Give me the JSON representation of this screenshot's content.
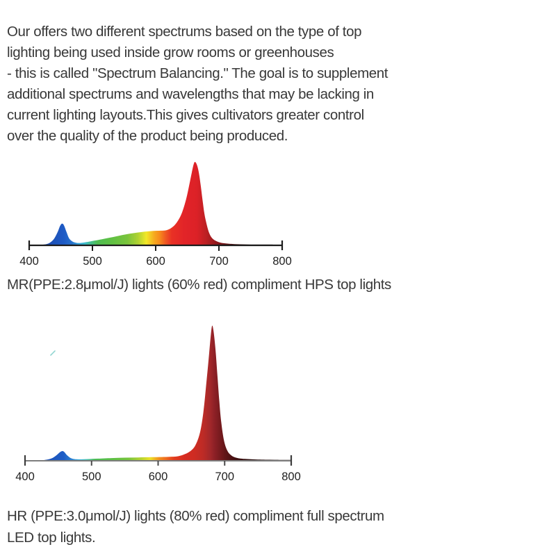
{
  "intro": {
    "lines": [
      "Our offers two different spectrums based on the type of top",
      "lighting being used inside grow rooms or greenhouses",
      "- this is called \"Spectrum Balancing.\" The goal is to supplement",
      "additional spectrums and wavelengths that may be lacking in",
      "current lighting layouts.This gives cultivators greater control",
      "over the quality of the product being produced."
    ]
  },
  "chart_data": [
    {
      "type": "area",
      "id": "MR",
      "title": "",
      "caption": "MR(PPE:2.8μmol/J) lights (60% red) compliment HPS top lights",
      "xlabel": "",
      "ylabel": "",
      "x_unit": "wavelength_nm",
      "xlim": [
        400,
        800
      ],
      "ylim": [
        0,
        1
      ],
      "x_ticks": [
        400,
        500,
        600,
        700,
        800
      ],
      "grid": false,
      "legend": null,
      "peaks": [
        {
          "wavelength_nm": 452,
          "relative_intensity": 0.26,
          "band": "blue"
        },
        {
          "wavelength_nm": 585,
          "relative_intensity": 0.18,
          "band": "broad green-yellow-orange hump"
        },
        {
          "wavelength_nm": 662,
          "relative_intensity": 1.0,
          "band": "red"
        }
      ],
      "profile_units": {
        "x": "wavelength_nm",
        "y": "relative_intensity_0_to_1"
      },
      "profile": [
        [
          400,
          0
        ],
        [
          414,
          0.003
        ],
        [
          424,
          0.01
        ],
        [
          432,
          0.028
        ],
        [
          439,
          0.075
        ],
        [
          445,
          0.16
        ],
        [
          449,
          0.235
        ],
        [
          452,
          0.26
        ],
        [
          455,
          0.24
        ],
        [
          459,
          0.16
        ],
        [
          463,
          0.085
        ],
        [
          468,
          0.048
        ],
        [
          474,
          0.032
        ],
        [
          481,
          0.028
        ],
        [
          490,
          0.038
        ],
        [
          500,
          0.052
        ],
        [
          512,
          0.068
        ],
        [
          525,
          0.088
        ],
        [
          540,
          0.112
        ],
        [
          555,
          0.134
        ],
        [
          570,
          0.152
        ],
        [
          583,
          0.165
        ],
        [
          596,
          0.173
        ],
        [
          608,
          0.176
        ],
        [
          617,
          0.182
        ],
        [
          625,
          0.21
        ],
        [
          633,
          0.27
        ],
        [
          641,
          0.38
        ],
        [
          648,
          0.55
        ],
        [
          653,
          0.72
        ],
        [
          657,
          0.87
        ],
        [
          660,
          0.97
        ],
        [
          662,
          1.0
        ],
        [
          665,
          0.97
        ],
        [
          668,
          0.88
        ],
        [
          671,
          0.73
        ],
        [
          674,
          0.55
        ],
        [
          677,
          0.38
        ],
        [
          681,
          0.24
        ],
        [
          685,
          0.14
        ],
        [
          690,
          0.08
        ],
        [
          696,
          0.05
        ],
        [
          703,
          0.032
        ],
        [
          712,
          0.022
        ],
        [
          725,
          0.015
        ],
        [
          745,
          0.011
        ],
        [
          770,
          0.009
        ],
        [
          800,
          0.008
        ]
      ],
      "gradient_stops": [
        [
          403,
          "#1C3F9E"
        ],
        [
          438,
          "#1D52B8"
        ],
        [
          455,
          "#1E5BC6"
        ],
        [
          468,
          "#2873CC"
        ],
        [
          478,
          "#33A3DA"
        ],
        [
          488,
          "#3EBDCC"
        ],
        [
          498,
          "#47BE8A"
        ],
        [
          508,
          "#4FBD52"
        ],
        [
          530,
          "#5FC043"
        ],
        [
          555,
          "#7AC43C"
        ],
        [
          572,
          "#AFD232"
        ],
        [
          585,
          "#F2E828"
        ],
        [
          598,
          "#F6A81F"
        ],
        [
          606,
          "#F68D1C"
        ],
        [
          615,
          "#F05A22"
        ],
        [
          625,
          "#E93125"
        ],
        [
          645,
          "#E22428"
        ],
        [
          665,
          "#DC2127"
        ],
        [
          680,
          "#BB2023"
        ],
        [
          695,
          "#93181C"
        ],
        [
          710,
          "#6B1315"
        ],
        [
          735,
          "#3A0E0E"
        ],
        [
          770,
          "#200808"
        ],
        [
          800,
          "#150505"
        ]
      ]
    },
    {
      "type": "area",
      "id": "HR",
      "title": "",
      "caption": "HR (PPE:3.0μmol/J) lights (80% red) compliment full spectrum LED top lights.",
      "caption_lines": [
        "HR (PPE:3.0μmol/J) lights (80% red) compliment full spectrum",
        "LED top lights."
      ],
      "xlabel": "",
      "ylabel": "",
      "x_unit": "wavelength_nm",
      "xlim": [
        400,
        800
      ],
      "ylim": [
        0,
        1
      ],
      "x_ticks": [
        400,
        500,
        600,
        700,
        800
      ],
      "grid": false,
      "legend": null,
      "peaks": [
        {
          "wavelength_nm": 456,
          "relative_intensity": 0.072,
          "band": "blue"
        },
        {
          "wavelength_nm": 600,
          "relative_intensity": 0.028,
          "band": "low green-yellow band"
        },
        {
          "wavelength_nm": 681,
          "relative_intensity": 1.0,
          "band": "deep red"
        }
      ],
      "profile_units": {
        "x": "wavelength_nm",
        "y": "relative_intensity_0_to_1"
      },
      "profile": [
        [
          400,
          0
        ],
        [
          418,
          0.002
        ],
        [
          430,
          0.006
        ],
        [
          440,
          0.018
        ],
        [
          447,
          0.04
        ],
        [
          452,
          0.062
        ],
        [
          456,
          0.072
        ],
        [
          459,
          0.065
        ],
        [
          463,
          0.042
        ],
        [
          468,
          0.022
        ],
        [
          474,
          0.013
        ],
        [
          482,
          0.011
        ],
        [
          495,
          0.013
        ],
        [
          510,
          0.016
        ],
        [
          530,
          0.02
        ],
        [
          550,
          0.023
        ],
        [
          570,
          0.025
        ],
        [
          590,
          0.027
        ],
        [
          605,
          0.028
        ],
        [
          618,
          0.03
        ],
        [
          628,
          0.032
        ],
        [
          638,
          0.045
        ],
        [
          648,
          0.07
        ],
        [
          656,
          0.115
        ],
        [
          663,
          0.21
        ],
        [
          668,
          0.36
        ],
        [
          672,
          0.55
        ],
        [
          676,
          0.76
        ],
        [
          679,
          0.92
        ],
        [
          681,
          1.0
        ],
        [
          683,
          0.97
        ],
        [
          686,
          0.84
        ],
        [
          689,
          0.64
        ],
        [
          692,
          0.44
        ],
        [
          695,
          0.28
        ],
        [
          699,
          0.15
        ],
        [
          704,
          0.075
        ],
        [
          710,
          0.04
        ],
        [
          718,
          0.022
        ],
        [
          730,
          0.014
        ],
        [
          750,
          0.009
        ],
        [
          775,
          0.007
        ],
        [
          800,
          0.006
        ]
      ],
      "gradient_stops": [
        [
          403,
          "#1C3F9E"
        ],
        [
          440,
          "#1D55BC"
        ],
        [
          458,
          "#1E5DC6"
        ],
        [
          472,
          "#2E85D2"
        ],
        [
          482,
          "#38B0DA"
        ],
        [
          492,
          "#43BEB0"
        ],
        [
          505,
          "#4CBC55"
        ],
        [
          530,
          "#5BBF45"
        ],
        [
          555,
          "#76C43C"
        ],
        [
          575,
          "#B9D430"
        ],
        [
          588,
          "#EDE227"
        ],
        [
          600,
          "#F2971E"
        ],
        [
          612,
          "#EE6A1F"
        ],
        [
          624,
          "#E23C1E"
        ],
        [
          640,
          "#D62B21"
        ],
        [
          655,
          "#CE2C22"
        ],
        [
          668,
          "#BC2B26"
        ],
        [
          678,
          "#A3282A"
        ],
        [
          684,
          "#8F2127"
        ],
        [
          692,
          "#7A1B1F"
        ],
        [
          702,
          "#5E1517"
        ],
        [
          715,
          "#431011"
        ],
        [
          740,
          "#2A0C0C"
        ],
        [
          775,
          "#1A0707"
        ],
        [
          800,
          "#120505"
        ]
      ],
      "stray_mark": {
        "color": "#6FC9C4"
      }
    }
  ]
}
